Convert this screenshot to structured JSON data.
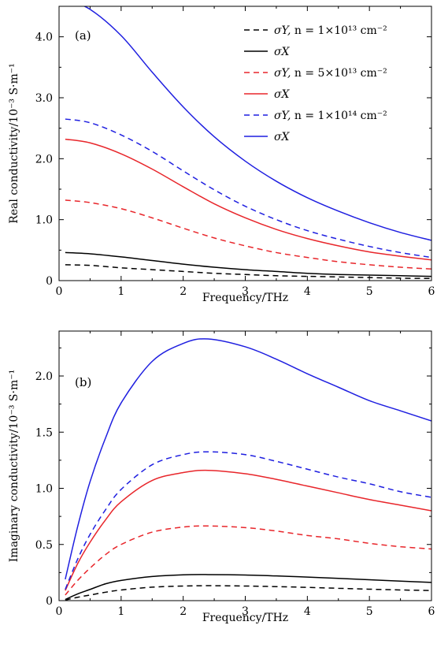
{
  "chart_data": [
    {
      "type": "line",
      "panel_label": "(a)",
      "xlabel": "Frequency/THz",
      "ylabel": "Real conductivity/10⁻³ S·m⁻¹",
      "xlim": [
        0,
        6
      ],
      "ylim": [
        0,
        4.5
      ],
      "xticks": [
        "0",
        "1",
        "2",
        "3",
        "4",
        "5",
        "6"
      ],
      "yticks": [
        "0",
        "1.0",
        "2.0",
        "3.0",
        "4.0"
      ],
      "legend_position": "top-right",
      "legend": [
        {
          "series": 0,
          "symbol": "σY, ",
          "text": "n = 1×10¹³ cm⁻²"
        },
        {
          "series": 1,
          "symbol": "σX",
          "text": ""
        },
        {
          "series": 2,
          "symbol": "σY, ",
          "text": "n = 5×10¹³ cm⁻²"
        },
        {
          "series": 3,
          "symbol": "σX",
          "text": ""
        },
        {
          "series": 4,
          "symbol": "σY, ",
          "text": "n = 1×10¹⁴ cm⁻²"
        },
        {
          "series": 5,
          "symbol": "σX",
          "text": ""
        }
      ],
      "x": [
        0.1,
        0.5,
        1,
        1.5,
        2,
        2.5,
        3,
        3.5,
        4,
        4.5,
        5,
        5.5,
        6
      ],
      "series": [
        {
          "name": "σY, n = 1×10¹³ cm⁻²",
          "color": "#000000",
          "dash": true,
          "values": [
            0.26,
            0.25,
            0.21,
            0.18,
            0.15,
            0.12,
            0.1,
            0.08,
            0.07,
            0.06,
            0.05,
            0.04,
            0.035
          ]
        },
        {
          "name": "σX, n = 1×10¹³ cm⁻²",
          "color": "#000000",
          "dash": false,
          "values": [
            0.46,
            0.44,
            0.39,
            0.33,
            0.27,
            0.22,
            0.18,
            0.15,
            0.12,
            0.1,
            0.09,
            0.08,
            0.07
          ]
        },
        {
          "name": "σY, n = 5×10¹³ cm⁻²",
          "color": "#e8262b",
          "dash": true,
          "values": [
            1.32,
            1.28,
            1.18,
            1.03,
            0.86,
            0.7,
            0.57,
            0.46,
            0.38,
            0.31,
            0.26,
            0.22,
            0.19
          ]
        },
        {
          "name": "σX, n = 5×10¹³ cm⁻²",
          "color": "#e8262b",
          "dash": false,
          "values": [
            2.32,
            2.26,
            2.08,
            1.83,
            1.54,
            1.26,
            1.03,
            0.84,
            0.69,
            0.57,
            0.47,
            0.4,
            0.34
          ]
        },
        {
          "name": "σY, n = 1×10¹⁴ cm⁻²",
          "color": "#1f1fe0",
          "dash": true,
          "values": [
            2.65,
            2.59,
            2.39,
            2.12,
            1.8,
            1.49,
            1.22,
            1.0,
            0.82,
            0.68,
            0.56,
            0.46,
            0.38
          ]
        },
        {
          "name": "σX, n = 1×10¹⁴ cm⁻²",
          "color": "#1f1fe0",
          "dash": false,
          "values": [
            4.62,
            4.45,
            4.02,
            3.42,
            2.85,
            2.36,
            1.96,
            1.63,
            1.36,
            1.14,
            0.95,
            0.79,
            0.66
          ]
        }
      ]
    },
    {
      "type": "line",
      "panel_label": "(b)",
      "xlabel": "Frequency/THz",
      "ylabel": "Imaginary conductivity/10⁻³ S·m⁻¹",
      "xlim": [
        0,
        6
      ],
      "ylim": [
        0,
        2.4
      ],
      "xticks": [
        "0",
        "1",
        "2",
        "3",
        "4",
        "5",
        "6"
      ],
      "yticks": [
        "0",
        "0.5",
        "1.0",
        "1.5",
        "2.0"
      ],
      "x": [
        0.1,
        0.3,
        0.5,
        0.75,
        1,
        1.5,
        2,
        2.4,
        3,
        3.5,
        4,
        4.5,
        5,
        5.5,
        6
      ],
      "series": [
        {
          "name": "σY, n = 1×10¹³ cm⁻²",
          "color": "#000000",
          "dash": true,
          "values": [
            0.005,
            0.03,
            0.05,
            0.075,
            0.095,
            0.12,
            0.13,
            0.133,
            0.13,
            0.125,
            0.118,
            0.11,
            0.102,
            0.095,
            0.09
          ]
        },
        {
          "name": "σX, n = 1×10¹³ cm⁻²",
          "color": "#000000",
          "dash": false,
          "values": [
            0.01,
            0.06,
            0.1,
            0.15,
            0.18,
            0.215,
            0.23,
            0.232,
            0.228,
            0.22,
            0.21,
            0.198,
            0.186,
            0.174,
            0.162
          ]
        },
        {
          "name": "σY, n = 5×10¹³ cm⁻²",
          "color": "#e8262b",
          "dash": true,
          "values": [
            0.05,
            0.18,
            0.29,
            0.41,
            0.5,
            0.61,
            0.655,
            0.665,
            0.65,
            0.62,
            0.58,
            0.55,
            0.51,
            0.48,
            0.46
          ]
        },
        {
          "name": "σX, n = 5×10¹³ cm⁻²",
          "color": "#e8262b",
          "dash": false,
          "values": [
            0.09,
            0.33,
            0.52,
            0.72,
            0.88,
            1.07,
            1.14,
            1.16,
            1.13,
            1.08,
            1.02,
            0.96,
            0.9,
            0.85,
            0.8
          ]
        },
        {
          "name": "σY, n = 1×10¹⁴ cm⁻²",
          "color": "#1f1fe0",
          "dash": true,
          "values": [
            0.1,
            0.37,
            0.59,
            0.81,
            0.99,
            1.21,
            1.3,
            1.325,
            1.3,
            1.24,
            1.17,
            1.1,
            1.04,
            0.97,
            0.92
          ]
        },
        {
          "name": "σX, n = 1×10¹⁴ cm⁻²",
          "color": "#1f1fe0",
          "dash": false,
          "values": [
            0.19,
            0.66,
            1.06,
            1.45,
            1.76,
            2.13,
            2.29,
            2.33,
            2.26,
            2.15,
            2.02,
            1.9,
            1.78,
            1.69,
            1.6
          ]
        }
      ]
    }
  ]
}
